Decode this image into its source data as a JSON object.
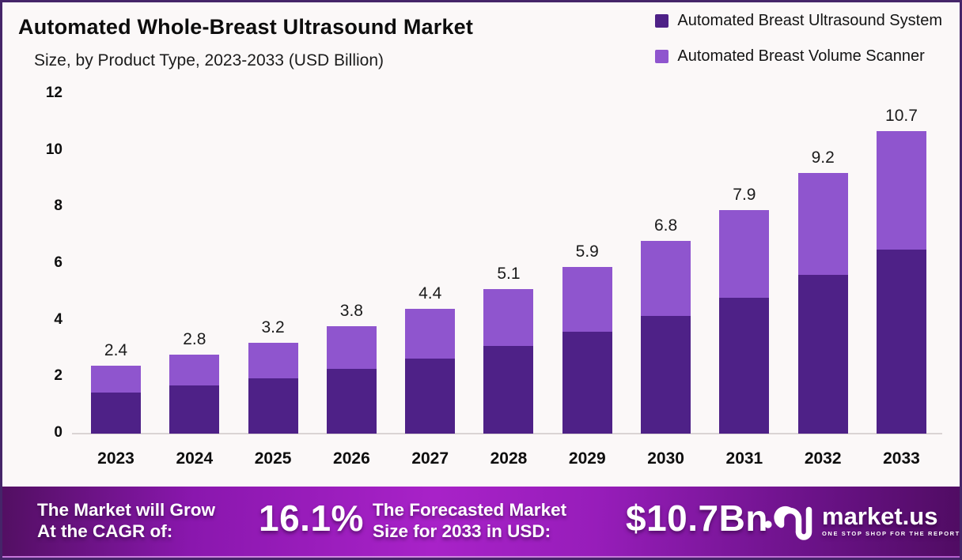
{
  "header": {
    "title": "Automated Whole-Breast Ultrasound Market",
    "subtitle": "Size, by Product Type, 2023-2033 (USD Billion)"
  },
  "legend": {
    "items": [
      {
        "label": "Automated Breast Ultrasound System",
        "color": "#4E2187"
      },
      {
        "label": "Automated Breast Volume Scanner",
        "color": "#8F55CE"
      }
    ]
  },
  "chart_data": {
    "type": "bar",
    "stacked": true,
    "title": "Automated Whole-Breast Ultrasound Market Size, by Product Type, 2023-2033 (USD Billion)",
    "categories": [
      "2023",
      "2024",
      "2025",
      "2026",
      "2027",
      "2028",
      "2029",
      "2030",
      "2031",
      "2032",
      "2033"
    ],
    "series": [
      {
        "name": "Automated Breast Ultrasound System",
        "color": "#4E2187",
        "values": [
          1.45,
          1.7,
          1.95,
          2.3,
          2.65,
          3.1,
          3.6,
          4.15,
          4.8,
          5.6,
          6.5
        ]
      },
      {
        "name": "Automated Breast Volume Scanner",
        "color": "#8F55CE",
        "values": [
          0.95,
          1.1,
          1.25,
          1.5,
          1.75,
          2.0,
          2.3,
          2.65,
          3.1,
          3.6,
          4.2
        ]
      }
    ],
    "totals": [
      2.4,
      2.8,
      3.2,
      3.8,
      4.4,
      5.1,
      5.9,
      6.8,
      7.9,
      9.2,
      10.7
    ],
    "total_labels": [
      "2.4",
      "2.8",
      "3.2",
      "3.8",
      "4.4",
      "5.1",
      "5.9",
      "6.8",
      "7.9",
      "9.2",
      "10.7"
    ],
    "xlabel": "",
    "ylabel": "",
    "ylim": [
      0,
      12
    ],
    "yticks": [
      0,
      2,
      4,
      6,
      8,
      10,
      12
    ],
    "grid": false,
    "legend_position": "top-right"
  },
  "banner": {
    "cagr_label_line1": "The Market will Grow",
    "cagr_label_line2": "At the CAGR of:",
    "cagr_value": "16.1%",
    "forecast_label_line1": "The Forecasted Market",
    "forecast_label_line2": "Size for 2033 in USD:",
    "forecast_value": "$10.7Bn",
    "brand_name": "market.us",
    "brand_tagline": "ONE STOP SHOP FOR THE REPORTS"
  }
}
